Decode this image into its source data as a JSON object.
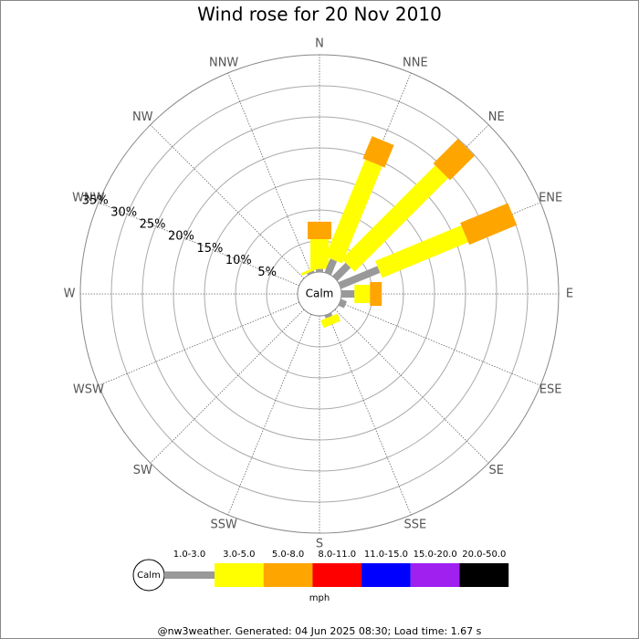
{
  "chart_data": {
    "type": "wind_rose",
    "title": "Wind rose for 20 Nov 2010",
    "categories": [
      "N",
      "NNE",
      "NE",
      "ENE",
      "E",
      "ESE",
      "SE",
      "SSE",
      "S",
      "SSW",
      "SW",
      "WSW",
      "W",
      "WNW",
      "NW",
      "NNW"
    ],
    "calm_label": "Calm",
    "unit_label": "mph",
    "footer": "@nw3weather. Generated: 04 Jun 2025 08:30; Load time: 1.67 s",
    "ylim": [
      0,
      35
    ],
    "yticks": [
      {
        "value": 5,
        "label": "5%"
      },
      {
        "value": 10,
        "label": "10%"
      },
      {
        "value": 15,
        "label": "15%"
      },
      {
        "value": 20,
        "label": "20%"
      },
      {
        "value": 25,
        "label": "25%"
      },
      {
        "value": 30,
        "label": "30%"
      },
      {
        "value": 35,
        "label": "35%"
      }
    ],
    "grid": true,
    "series": [
      {
        "name": "1.0-3.0",
        "color": "#999999",
        "values": [
          0.5,
          2.4,
          3,
          6.8,
          2.1,
          1,
          0,
          0.5,
          0,
          0,
          0,
          0,
          0,
          0,
          0,
          0.3
        ]
      },
      {
        "name": "3.0-5.0",
        "color": "#ffff00",
        "values": [
          4.8,
          16.9,
          21.3,
          15,
          2.5,
          0,
          0,
          1.3,
          0,
          0,
          0,
          0,
          0,
          0,
          0,
          0.4
        ]
      },
      {
        "name": "5.0-8.0",
        "color": "#ffa500",
        "values": [
          2.8,
          3.9,
          5.6,
          8.3,
          1.9,
          0,
          0,
          0,
          0,
          0,
          0,
          0,
          0,
          0,
          0,
          0
        ]
      },
      {
        "name": "8.0-11.0",
        "color": "#ff0000",
        "values": [
          0,
          0,
          0,
          0,
          0,
          0,
          0,
          0,
          0,
          0,
          0,
          0,
          0,
          0,
          0,
          0
        ]
      },
      {
        "name": "11.0-15.0",
        "color": "#0000ff",
        "values": [
          0,
          0,
          0,
          0,
          0,
          0,
          0,
          0,
          0,
          0,
          0,
          0,
          0,
          0,
          0,
          0
        ]
      },
      {
        "name": "15.0-20.0",
        "color": "#a020f0",
        "values": [
          0,
          0,
          0,
          0,
          0,
          0,
          0,
          0,
          0,
          0,
          0,
          0,
          0,
          0,
          0,
          0
        ]
      },
      {
        "name": "20.0-50.0",
        "color": "#000000",
        "values": [
          0,
          0,
          0,
          0,
          0,
          0,
          0,
          0,
          0,
          0,
          0,
          0,
          0,
          0,
          0,
          0
        ]
      }
    ]
  }
}
